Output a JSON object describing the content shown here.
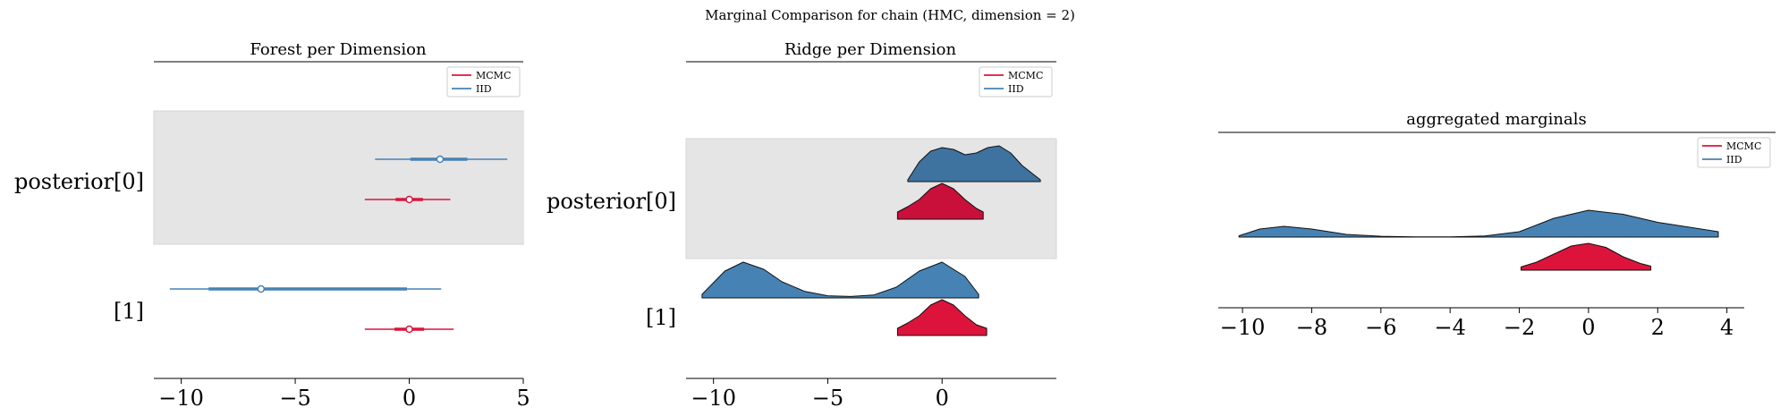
{
  "suptitle": "Marginal Comparison for chain (HMC, dimension = 2)",
  "colors": {
    "mcmc": "#DC143C",
    "mcmc_dark": "#C8103A",
    "iid": "#4682B4",
    "iid_dark": "#3E73A0",
    "band": "#E5E5E5"
  },
  "chart_data": [
    {
      "type": "forest",
      "title": "Forest per Dimension",
      "xlim": [
        -11.2,
        5.0
      ],
      "xticks": [
        -10,
        -5,
        0,
        5
      ],
      "xtick_labels": [
        "−10",
        "−5",
        "0",
        "5"
      ],
      "legend": {
        "entries": [
          "MCMC",
          "IID"
        ],
        "placement": "top-right"
      },
      "rows": [
        {
          "label": "posterior[0]",
          "series": [
            {
              "name": "IID",
              "median": 1.35,
              "hdi_inner": [
                0.05,
                2.55
              ],
              "hdi_outer": [
                -1.5,
                4.3
              ]
            },
            {
              "name": "MCMC",
              "median": 0.0,
              "hdi_inner": [
                -0.6,
                0.6
              ],
              "hdi_outer": [
                -1.95,
                1.8
              ]
            }
          ]
        },
        {
          "label": "[1]",
          "series": [
            {
              "name": "IID",
              "median": -6.5,
              "hdi_inner": [
                -8.8,
                -0.1
              ],
              "hdi_outer": [
                -10.5,
                1.4
              ]
            },
            {
              "name": "MCMC",
              "median": 0.0,
              "hdi_inner": [
                -0.65,
                0.65
              ],
              "hdi_outer": [
                -1.95,
                1.95
              ]
            }
          ]
        }
      ]
    },
    {
      "type": "ridgeline",
      "title": "Ridge per Dimension",
      "xlim": [
        -11.2,
        5.0
      ],
      "xticks": [
        -10,
        -5,
        0
      ],
      "xtick_labels": [
        "−10",
        "−5",
        "0"
      ],
      "legend": {
        "entries": [
          "MCMC",
          "IID"
        ],
        "placement": "top-right"
      },
      "rows": [
        {
          "label": "posterior[0]",
          "series": [
            {
              "name": "IID",
              "x": [
                -1.5,
                -1.0,
                -0.5,
                0.0,
                0.5,
                1.0,
                1.5,
                2.0,
                2.5,
                3.0,
                3.5,
                4.3
              ],
              "density": [
                0.05,
                0.55,
                0.85,
                0.95,
                0.9,
                0.75,
                0.8,
                0.95,
                1.0,
                0.8,
                0.45,
                0.05
              ]
            },
            {
              "name": "MCMC",
              "x": [
                -1.95,
                -1.5,
                -1.0,
                -0.5,
                0.0,
                0.5,
                1.0,
                1.5,
                1.8
              ],
              "density": [
                0.2,
                0.35,
                0.55,
                0.85,
                1.0,
                0.85,
                0.55,
                0.3,
                0.2
              ]
            }
          ]
        },
        {
          "label": "[1]",
          "series": [
            {
              "name": "IID",
              "x": [
                -10.5,
                -9.5,
                -8.7,
                -7.8,
                -7.0,
                -6.0,
                -5.0,
                -4.0,
                -3.0,
                -2.0,
                -1.0,
                0.0,
                1.0,
                1.6
              ],
              "density": [
                0.1,
                0.75,
                1.0,
                0.8,
                0.45,
                0.18,
                0.06,
                0.04,
                0.08,
                0.3,
                0.75,
                1.0,
                0.6,
                0.1
              ]
            },
            {
              "name": "MCMC",
              "x": [
                -1.95,
                -1.5,
                -1.0,
                -0.5,
                0.0,
                0.5,
                1.0,
                1.5,
                1.95
              ],
              "density": [
                0.2,
                0.35,
                0.55,
                0.85,
                1.0,
                0.85,
                0.55,
                0.3,
                0.2
              ]
            }
          ]
        }
      ]
    },
    {
      "type": "ridgeline",
      "title": "aggregated marginals",
      "xlim": [
        -10.7,
        4.5
      ],
      "xticks": [
        -10,
        -8,
        -6,
        -4,
        -2,
        0,
        2,
        4
      ],
      "xtick_labels": [
        "−10",
        "−8",
        "−6",
        "−4",
        "−2",
        "0",
        "2",
        "4"
      ],
      "legend": {
        "entries": [
          "MCMC",
          "IID"
        ],
        "placement": "top-right"
      },
      "rows": [
        {
          "label": "",
          "series": [
            {
              "name": "IID",
              "x": [
                -10.1,
                -9.5,
                -8.8,
                -8.0,
                -7.0,
                -6.0,
                -5.0,
                -4.0,
                -3.0,
                -2.0,
                -1.0,
                0.0,
                1.0,
                2.0,
                3.0,
                3.75
              ],
              "density": [
                0.05,
                0.3,
                0.4,
                0.3,
                0.1,
                0.03,
                0.01,
                0.01,
                0.04,
                0.2,
                0.7,
                1.0,
                0.85,
                0.55,
                0.35,
                0.2
              ]
            },
            {
              "name": "MCMC",
              "x": [
                -1.95,
                -1.5,
                -1.0,
                -0.5,
                0.0,
                0.5,
                1.0,
                1.5,
                1.8
              ],
              "density": [
                0.12,
                0.3,
                0.6,
                0.9,
                1.0,
                0.85,
                0.5,
                0.25,
                0.15
              ]
            }
          ]
        }
      ]
    }
  ]
}
